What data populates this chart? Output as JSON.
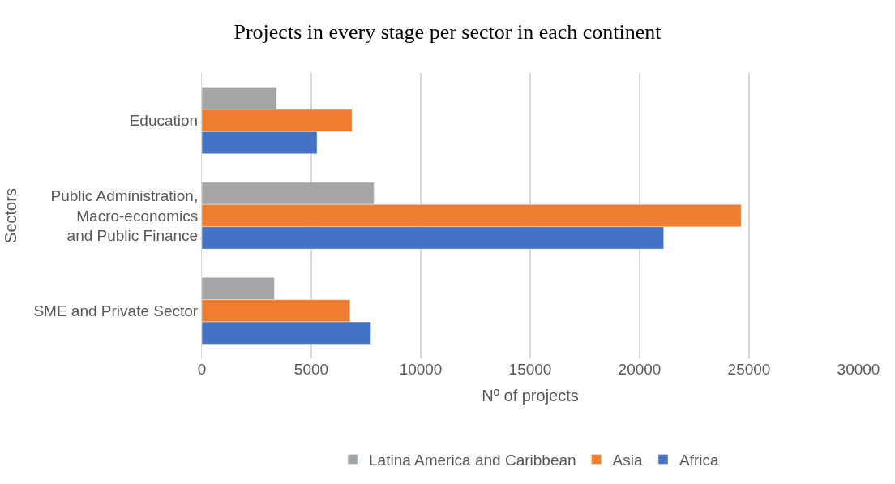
{
  "chart_data": {
    "type": "bar",
    "orientation": "horizontal",
    "title": "Projects in every stage per sector in each continent",
    "xlabel": "Nº of projects",
    "ylabel": "Sectors",
    "categories": [
      "Education",
      "Public Administration,\nMacro-economics\nand Public Finance",
      "SME and Private Sector"
    ],
    "series": [
      {
        "name": "Latina America and Caribbean",
        "color": "#a5a5a5",
        "values": [
          3410,
          7860,
          3310
        ]
      },
      {
        "name": "Asia",
        "color": "#ed7d31",
        "values": [
          6860,
          24640,
          6770
        ]
      },
      {
        "name": "Africa",
        "color": "#4472c4",
        "values": [
          5260,
          21100,
          7720
        ]
      }
    ],
    "xlim": [
      0,
      30000
    ],
    "xticks": [
      0,
      5000,
      10000,
      15000,
      20000,
      25000,
      30000
    ],
    "grid": "x",
    "legend": "bottom"
  }
}
